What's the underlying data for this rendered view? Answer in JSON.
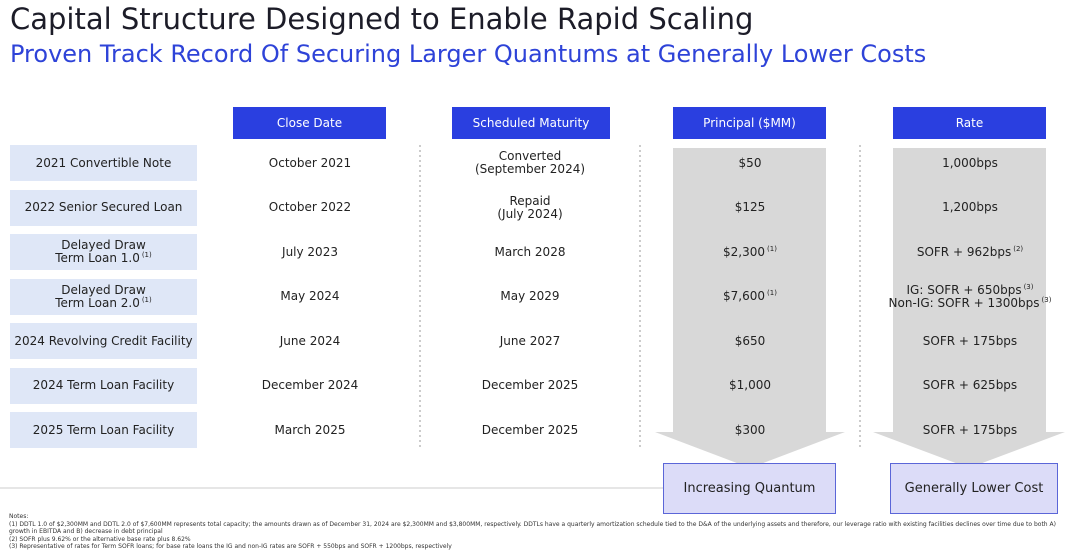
{
  "header": {
    "title": "Capital Structure Designed to Enable Rapid Scaling",
    "subtitle": "Proven Track Record Of Securing Larger Quantums at Generally Lower Costs"
  },
  "table": {
    "columns": [
      "Close Date",
      "Scheduled Maturity",
      "Principal ($MM)",
      "Rate"
    ],
    "rows": [
      [
        [
          {
            "text": "2021 Convertible Note"
          }
        ],
        [
          {
            "text": "October 2021"
          }
        ],
        [
          {
            "text": "Converted"
          },
          {
            "text": "(September 2024)"
          }
        ],
        [
          {
            "text": "$50"
          }
        ],
        [
          {
            "text": "1,000bps"
          }
        ]
      ],
      [
        [
          {
            "text": "2022 Senior Secured Loan"
          }
        ],
        [
          {
            "text": "October 2022"
          }
        ],
        [
          {
            "text": "Repaid"
          },
          {
            "text": "(July 2024)"
          }
        ],
        [
          {
            "text": "$125"
          }
        ],
        [
          {
            "text": "1,200bps"
          }
        ]
      ],
      [
        [
          {
            "text": "Delayed Draw"
          },
          {
            "text": "Term Loan 1.0",
            "note": "(1)"
          }
        ],
        [
          {
            "text": "July 2023"
          }
        ],
        [
          {
            "text": "March 2028"
          }
        ],
        [
          {
            "text": "$2,300",
            "note": "(1)"
          }
        ],
        [
          {
            "text": "SOFR + 962bps",
            "note": "(2)"
          }
        ]
      ],
      [
        [
          {
            "text": "Delayed Draw"
          },
          {
            "text": "Term Loan 2.0",
            "note": "(1)"
          }
        ],
        [
          {
            "text": "May 2024"
          }
        ],
        [
          {
            "text": "May 2029"
          }
        ],
        [
          {
            "text": "$7,600",
            "note": "(1)"
          }
        ],
        [
          {
            "text": "IG: SOFR + 650bps",
            "note": "(3)"
          },
          {
            "text": "Non-IG: SOFR + 1300bps",
            "note": "(3)"
          }
        ]
      ],
      [
        [
          {
            "text": "2024 Revolving Credit Facility"
          }
        ],
        [
          {
            "text": "June 2024"
          }
        ],
        [
          {
            "text": "June 2027"
          }
        ],
        [
          {
            "text": "$650"
          }
        ],
        [
          {
            "text": "SOFR + 175bps"
          }
        ]
      ],
      [
        [
          {
            "text": "2024 Term Loan Facility"
          }
        ],
        [
          {
            "text": "December 2024"
          }
        ],
        [
          {
            "text": "December 2025"
          }
        ],
        [
          {
            "text": "$1,000"
          }
        ],
        [
          {
            "text": "SOFR + 625bps"
          }
        ]
      ],
      [
        [
          {
            "text": "2025 Term Loan Facility"
          }
        ],
        [
          {
            "text": "March 2025"
          }
        ],
        [
          {
            "text": "December 2025"
          }
        ],
        [
          {
            "text": "$300"
          }
        ],
        [
          {
            "text": "SOFR + 175bps"
          }
        ]
      ]
    ]
  },
  "trends": [
    "Increasing Quantum",
    "Generally Lower Cost"
  ],
  "notes": [
    "Notes:",
    "(1) DDTL 1.0 of $2,300MM and DDTL 2.0 of $7,600MM represents total capacity; the amounts drawn as of December 31, 2024 are $2,300MM and $3,800MM, respectively. DDTLs have a quarterly amortization schedule tied to the D&A of the underlying assets and therefore, our leverage ratio with existing facilities declines over time due to both A) growth in EBITDA and B) decrease in debt principal",
    "(2) SOFR plus 9.62% or the alternative base rate plus 8.62%",
    "(3) Representative of rates for Term SOFR loans; for base rate loans the IG and non-IG rates are SOFR + 550bps and SOFR + 1200bps, respectively"
  ]
}
